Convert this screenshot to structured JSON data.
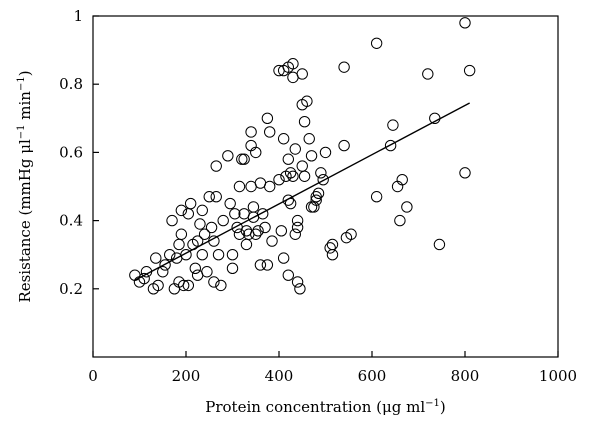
{
  "chart_data": {
    "type": "scatter",
    "xlabel_main": "Protein concentration (μg ml",
    "xlabel_sup": "−1",
    "xlabel_end": ")",
    "ylabel_main": "Resistance (mmHg μl",
    "ylabel_sup1": "−1",
    "ylabel_mid": " min",
    "ylabel_sup2": "−1",
    "ylabel_end": ")",
    "xlim": [
      0,
      1000
    ],
    "ylim": [
      0,
      1
    ],
    "x_ticks": [
      0,
      200,
      400,
      600,
      800,
      1000
    ],
    "x_tick_labels": [
      "0",
      "200",
      "400",
      "600",
      "800",
      "1000"
    ],
    "y_ticks": [
      0.2,
      0.4,
      0.6,
      0.8,
      1
    ],
    "y_tick_labels": [
      "0.2",
      "0.4",
      "0.6",
      "0.8",
      "1"
    ],
    "marker": "open-circle",
    "points": [
      {
        "x": 90,
        "y": 0.24
      },
      {
        "x": 100,
        "y": 0.22
      },
      {
        "x": 110,
        "y": 0.23
      },
      {
        "x": 115,
        "y": 0.25
      },
      {
        "x": 130,
        "y": 0.2
      },
      {
        "x": 135,
        "y": 0.29
      },
      {
        "x": 140,
        "y": 0.21
      },
      {
        "x": 150,
        "y": 0.25
      },
      {
        "x": 155,
        "y": 0.27
      },
      {
        "x": 165,
        "y": 0.3
      },
      {
        "x": 170,
        "y": 0.4
      },
      {
        "x": 175,
        "y": 0.2
      },
      {
        "x": 180,
        "y": 0.29
      },
      {
        "x": 185,
        "y": 0.33
      },
      {
        "x": 185,
        "y": 0.22
      },
      {
        "x": 190,
        "y": 0.43
      },
      {
        "x": 190,
        "y": 0.36
      },
      {
        "x": 195,
        "y": 0.21
      },
      {
        "x": 200,
        "y": 0.3
      },
      {
        "x": 205,
        "y": 0.42
      },
      {
        "x": 205,
        "y": 0.21
      },
      {
        "x": 210,
        "y": 0.45
      },
      {
        "x": 215,
        "y": 0.33
      },
      {
        "x": 220,
        "y": 0.26
      },
      {
        "x": 225,
        "y": 0.24
      },
      {
        "x": 225,
        "y": 0.34
      },
      {
        "x": 230,
        "y": 0.39
      },
      {
        "x": 235,
        "y": 0.3
      },
      {
        "x": 235,
        "y": 0.43
      },
      {
        "x": 240,
        "y": 0.36
      },
      {
        "x": 245,
        "y": 0.25
      },
      {
        "x": 250,
        "y": 0.47
      },
      {
        "x": 255,
        "y": 0.38
      },
      {
        "x": 260,
        "y": 0.34
      },
      {
        "x": 260,
        "y": 0.22
      },
      {
        "x": 265,
        "y": 0.47
      },
      {
        "x": 265,
        "y": 0.56
      },
      {
        "x": 270,
        "y": 0.3
      },
      {
        "x": 275,
        "y": 0.21
      },
      {
        "x": 280,
        "y": 0.4
      },
      {
        "x": 290,
        "y": 0.59
      },
      {
        "x": 295,
        "y": 0.45
      },
      {
        "x": 300,
        "y": 0.3
      },
      {
        "x": 300,
        "y": 0.26
      },
      {
        "x": 305,
        "y": 0.42
      },
      {
        "x": 310,
        "y": 0.38
      },
      {
        "x": 315,
        "y": 0.5
      },
      {
        "x": 315,
        "y": 0.36
      },
      {
        "x": 320,
        "y": 0.58
      },
      {
        "x": 325,
        "y": 0.58
      },
      {
        "x": 325,
        "y": 0.42
      },
      {
        "x": 330,
        "y": 0.33
      },
      {
        "x": 330,
        "y": 0.37
      },
      {
        "x": 335,
        "y": 0.36
      },
      {
        "x": 340,
        "y": 0.66
      },
      {
        "x": 340,
        "y": 0.62
      },
      {
        "x": 340,
        "y": 0.5
      },
      {
        "x": 345,
        "y": 0.44
      },
      {
        "x": 345,
        "y": 0.41
      },
      {
        "x": 350,
        "y": 0.6
      },
      {
        "x": 350,
        "y": 0.36
      },
      {
        "x": 355,
        "y": 0.37
      },
      {
        "x": 360,
        "y": 0.51
      },
      {
        "x": 360,
        "y": 0.27
      },
      {
        "x": 365,
        "y": 0.42
      },
      {
        "x": 370,
        "y": 0.38
      },
      {
        "x": 375,
        "y": 0.7
      },
      {
        "x": 375,
        "y": 0.27
      },
      {
        "x": 380,
        "y": 0.66
      },
      {
        "x": 380,
        "y": 0.5
      },
      {
        "x": 385,
        "y": 0.34
      },
      {
        "x": 400,
        "y": 0.84
      },
      {
        "x": 400,
        "y": 0.52
      },
      {
        "x": 405,
        "y": 0.37
      },
      {
        "x": 410,
        "y": 0.84
      },
      {
        "x": 410,
        "y": 0.64
      },
      {
        "x": 410,
        "y": 0.29
      },
      {
        "x": 415,
        "y": 0.53
      },
      {
        "x": 420,
        "y": 0.85
      },
      {
        "x": 420,
        "y": 0.58
      },
      {
        "x": 420,
        "y": 0.46
      },
      {
        "x": 420,
        "y": 0.24
      },
      {
        "x": 425,
        "y": 0.54
      },
      {
        "x": 425,
        "y": 0.45
      },
      {
        "x": 430,
        "y": 0.86
      },
      {
        "x": 430,
        "y": 0.82
      },
      {
        "x": 430,
        "y": 0.53
      },
      {
        "x": 435,
        "y": 0.61
      },
      {
        "x": 435,
        "y": 0.36
      },
      {
        "x": 440,
        "y": 0.4
      },
      {
        "x": 440,
        "y": 0.38
      },
      {
        "x": 440,
        "y": 0.22
      },
      {
        "x": 445,
        "y": 0.2
      },
      {
        "x": 450,
        "y": 0.83
      },
      {
        "x": 450,
        "y": 0.74
      },
      {
        "x": 450,
        "y": 0.56
      },
      {
        "x": 455,
        "y": 0.69
      },
      {
        "x": 455,
        "y": 0.53
      },
      {
        "x": 460,
        "y": 0.75
      },
      {
        "x": 465,
        "y": 0.64
      },
      {
        "x": 470,
        "y": 0.59
      },
      {
        "x": 470,
        "y": 0.44
      },
      {
        "x": 475,
        "y": 0.44
      },
      {
        "x": 480,
        "y": 0.46
      },
      {
        "x": 480,
        "y": 0.47
      },
      {
        "x": 485,
        "y": 0.48
      },
      {
        "x": 490,
        "y": 0.54
      },
      {
        "x": 495,
        "y": 0.52
      },
      {
        "x": 500,
        "y": 0.6
      },
      {
        "x": 510,
        "y": 0.32
      },
      {
        "x": 515,
        "y": 0.3
      },
      {
        "x": 515,
        "y": 0.33
      },
      {
        "x": 540,
        "y": 0.85
      },
      {
        "x": 540,
        "y": 0.62
      },
      {
        "x": 545,
        "y": 0.35
      },
      {
        "x": 555,
        "y": 0.36
      },
      {
        "x": 610,
        "y": 0.92
      },
      {
        "x": 610,
        "y": 0.47
      },
      {
        "x": 640,
        "y": 0.62
      },
      {
        "x": 645,
        "y": 0.68
      },
      {
        "x": 655,
        "y": 0.5
      },
      {
        "x": 660,
        "y": 0.4
      },
      {
        "x": 665,
        "y": 0.52
      },
      {
        "x": 675,
        "y": 0.44
      },
      {
        "x": 720,
        "y": 0.83
      },
      {
        "x": 735,
        "y": 0.7
      },
      {
        "x": 745,
        "y": 0.33
      },
      {
        "x": 800,
        "y": 0.98
      },
      {
        "x": 800,
        "y": 0.54
      },
      {
        "x": 810,
        "y": 0.84
      }
    ],
    "trendline": {
      "x": [
        90,
        810
      ],
      "y": [
        0.225,
        0.745
      ]
    },
    "grid": false,
    "colors": {
      "axis": "#000000",
      "marker": "#000000",
      "line": "#000000"
    }
  }
}
